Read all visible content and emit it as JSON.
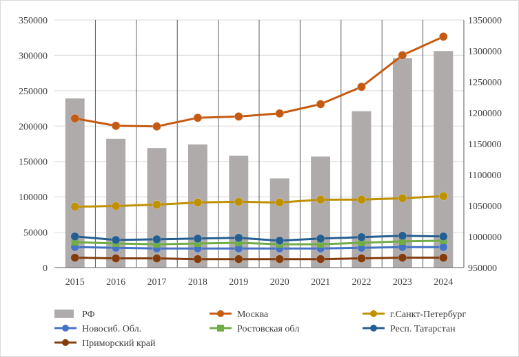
{
  "chart_data": {
    "type": "bar+line",
    "title": "",
    "categories": [
      "2015",
      "2016",
      "2017",
      "2018",
      "2019",
      "2020",
      "2021",
      "2022",
      "2023",
      "2024"
    ],
    "bar_series": {
      "name": "РФ",
      "axis": "left",
      "color": "#afabab",
      "values": [
        239000,
        182000,
        169000,
        174000,
        158000,
        126000,
        157000,
        221000,
        296000,
        306000
      ]
    },
    "line_series": [
      {
        "name": "Москва",
        "axis": "right",
        "color": "#c55a11",
        "marker": "circle",
        "values": [
          1191000,
          1179000,
          1178000,
          1192000,
          1194000,
          1199000,
          1214000,
          1242000,
          1293000,
          1323000
        ]
      },
      {
        "name": "г.Санкт-Петербург",
        "axis": "left",
        "color": "#bf9000",
        "marker": "circle",
        "values": [
          86000,
          87000,
          89000,
          92000,
          93000,
          92000,
          96000,
          96000,
          98000,
          101000
        ]
      },
      {
        "name": "Новосиб. Обл.",
        "axis": "left",
        "color": "#4472c4",
        "marker": "circle",
        "values": [
          29000,
          28000,
          27000,
          27000,
          27000,
          27000,
          27000,
          28000,
          29000,
          29000
        ]
      },
      {
        "name": "Ростовская обл",
        "axis": "left",
        "color": "#70ad47",
        "marker": "square",
        "values": [
          36000,
          34000,
          33000,
          34000,
          35000,
          33000,
          33000,
          35000,
          37000,
          38000
        ]
      },
      {
        "name": "Респ. Татарстан",
        "axis": "left",
        "color": "#255e91",
        "marker": "circle",
        "values": [
          44000,
          39000,
          40000,
          41000,
          42000,
          38000,
          41000,
          43000,
          45000,
          44000
        ]
      },
      {
        "name": "Приморский край",
        "axis": "left",
        "color": "#843c0c",
        "marker": "circle",
        "values": [
          14000,
          13000,
          13000,
          12000,
          12000,
          12000,
          12000,
          13000,
          14000,
          14000
        ]
      }
    ],
    "y_left": {
      "min": 0,
      "max": 350000,
      "step": 50000,
      "tick_labels": [
        "0",
        "50000",
        "100000",
        "150000",
        "200000",
        "250000",
        "300000",
        "350000"
      ]
    },
    "y_right": {
      "min": 950000,
      "max": 1350000,
      "step": 50000,
      "tick_labels": [
        "950000",
        "1000000",
        "1050000",
        "1100000",
        "1150000",
        "1200000",
        "1250000",
        "1300000",
        "1350000"
      ]
    },
    "grid": {
      "horizontal": true,
      "vertical": true
    },
    "legend": {
      "placement": "bottom",
      "entries": [
        "РФ",
        "Москва",
        "г.Санкт-Петербург",
        "Новосиб. Обл.",
        "Ростовская обл",
        "Респ. Татарстан",
        "Приморский край"
      ]
    }
  }
}
